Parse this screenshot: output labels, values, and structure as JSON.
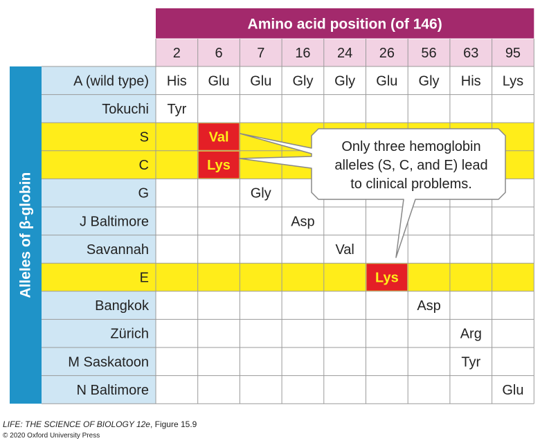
{
  "header": {
    "title": "Amino acid position (of 146)",
    "positions": [
      "2",
      "6",
      "7",
      "16",
      "24",
      "26",
      "56",
      "63",
      "95"
    ]
  },
  "side_label": "Alleles of β-globin",
  "rows": [
    {
      "allele": "A (wild type)",
      "highlight": false,
      "cells": [
        "His",
        "Glu",
        "Glu",
        "Gly",
        "Gly",
        "Glu",
        "Gly",
        "His",
        "Lys"
      ]
    },
    {
      "allele": "Tokuchi",
      "highlight": false,
      "cells": [
        "Tyr",
        "",
        "",
        "",
        "",
        "",
        "",
        "",
        ""
      ]
    },
    {
      "allele": "S",
      "highlight": true,
      "cells": [
        "",
        "Val",
        "",
        "",
        "",
        "",
        "",
        "",
        ""
      ]
    },
    {
      "allele": "C",
      "highlight": true,
      "cells": [
        "",
        "Lys",
        "",
        "",
        "",
        "",
        "",
        "",
        ""
      ]
    },
    {
      "allele": "G",
      "highlight": false,
      "cells": [
        "",
        "",
        "Gly",
        "",
        "",
        "",
        "",
        "",
        ""
      ]
    },
    {
      "allele": "J Baltimore",
      "highlight": false,
      "cells": [
        "",
        "",
        "",
        "Asp",
        "",
        "",
        "",
        "",
        ""
      ]
    },
    {
      "allele": "Savannah",
      "highlight": false,
      "cells": [
        "",
        "",
        "",
        "",
        "Val",
        "",
        "",
        "",
        ""
      ]
    },
    {
      "allele": "E",
      "highlight": true,
      "cells": [
        "",
        "",
        "",
        "",
        "",
        "Lys",
        "",
        "",
        ""
      ]
    },
    {
      "allele": "Bangkok",
      "highlight": false,
      "cells": [
        "",
        "",
        "",
        "",
        "",
        "",
        "Asp",
        "",
        ""
      ]
    },
    {
      "allele": "Zürich",
      "highlight": false,
      "cells": [
        "",
        "",
        "",
        "",
        "",
        "",
        "",
        "Arg",
        ""
      ]
    },
    {
      "allele": "M Saskatoon",
      "highlight": false,
      "cells": [
        "",
        "",
        "",
        "",
        "",
        "",
        "",
        "Tyr",
        ""
      ]
    },
    {
      "allele": "N Baltimore",
      "highlight": false,
      "cells": [
        "",
        "",
        "",
        "",
        "",
        "",
        "",
        "",
        "Glu"
      ]
    }
  ],
  "clinical_mutations": [
    {
      "row": 2,
      "col": 1
    },
    {
      "row": 3,
      "col": 1
    },
    {
      "row": 7,
      "col": 5
    }
  ],
  "callout": {
    "lines": [
      "Only three hemoglobin",
      "alleles (S, C, and E) lead",
      "to clinical problems."
    ]
  },
  "colors": {
    "header_purple": "#a3296c",
    "position_pink": "#f2d2e3",
    "side_blue": "#1f93c8",
    "label_blue": "#cfe6f4",
    "highlight_yellow": "#ffed1a",
    "mutation_red": "#e41f26",
    "mutation_text": "#ffed1a",
    "grid": "#9a9a9a"
  },
  "caption": {
    "line1_italic": "LIFE: THE SCIENCE OF BIOLOGY 12e",
    "line1_rest": ", Figure 15.9",
    "line2": "© 2020 Oxford University Press"
  }
}
